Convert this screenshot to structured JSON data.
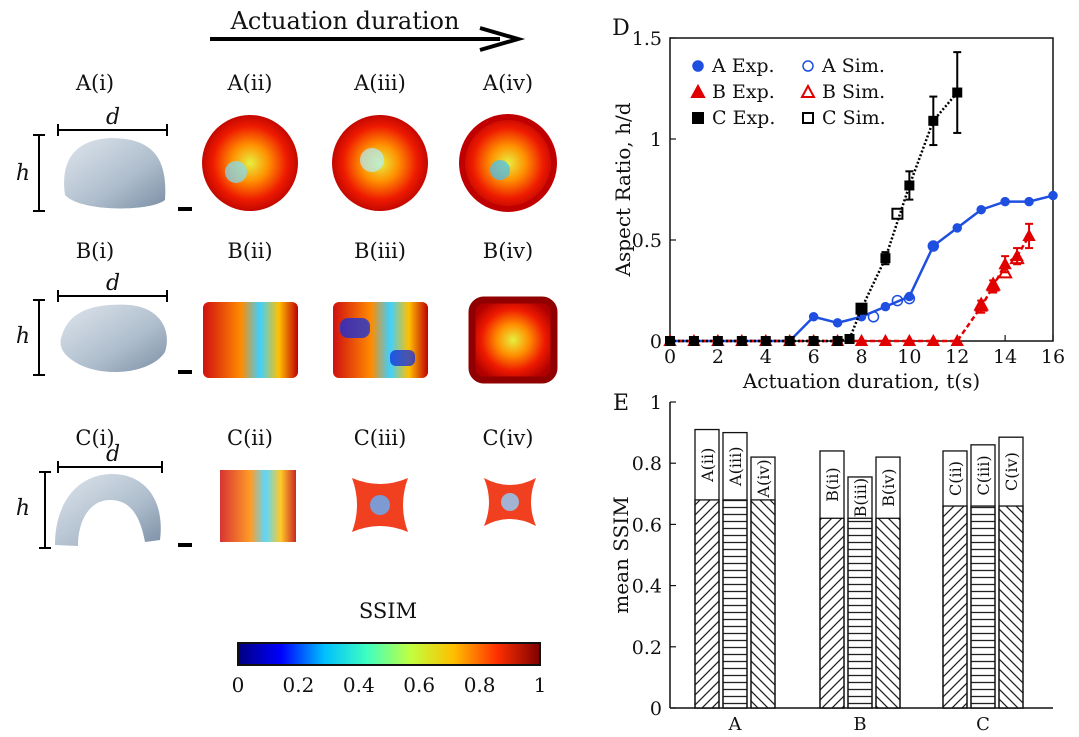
{
  "header": {
    "title": "Actuation duration"
  },
  "grid": {
    "row_a": {
      "labels": [
        "A(i)",
        "A(ii)",
        "A(iii)",
        "A(iv)"
      ],
      "d": "d",
      "h": "h"
    },
    "row_b": {
      "labels": [
        "B(i)",
        "B(ii)",
        "B(iii)",
        "B(iv)"
      ],
      "d": "d",
      "h": "h"
    },
    "row_c": {
      "labels": [
        "C(i)",
        "C(ii)",
        "C(iii)",
        "C(iv)"
      ],
      "d": "d",
      "h": "h"
    }
  },
  "colorbar": {
    "title": "SSIM",
    "ticks": [
      "0",
      "0.2",
      "0.4",
      "0.6",
      "0.8",
      "1"
    ],
    "stops": [
      "#00007f",
      "#0000ff",
      "#00bfff",
      "#40ffc0",
      "#c0ff40",
      "#ffbf00",
      "#ff3000",
      "#7f0000"
    ]
  },
  "panel_d": {
    "label": "D"
  },
  "panel_e": {
    "label": "E"
  },
  "chart_data": [
    {
      "type": "line",
      "title": "",
      "xlabel": "Actuation duration, t(s)",
      "ylabel": "Aspect Ratio, h/d",
      "xlim": [
        0,
        16
      ],
      "ylim": [
        0,
        1.5
      ],
      "xticks": [
        "0",
        "2",
        "4",
        "6",
        "8",
        "10",
        "12",
        "14",
        "16"
      ],
      "yticks": [
        "0",
        "0.5",
        "1",
        "1.5"
      ],
      "legend": [
        {
          "name": "A Exp.",
          "color": "#1f4fe0",
          "marker": "circle-filled"
        },
        {
          "name": "A Sim.",
          "color": "#1f4fe0",
          "marker": "circle-open"
        },
        {
          "name": "B Exp.",
          "color": "#e00000",
          "marker": "triangle-filled"
        },
        {
          "name": "B Sim.",
          "color": "#e00000",
          "marker": "triangle-open"
        },
        {
          "name": "C Exp.",
          "color": "#000000",
          "marker": "square-filled"
        },
        {
          "name": "C Sim.",
          "color": "#000000",
          "marker": "square-open"
        }
      ],
      "series": [
        {
          "name": "A Exp.",
          "color": "#1f4fe0",
          "x": [
            0,
            1,
            2,
            3,
            4,
            5,
            6,
            7,
            8,
            9,
            10,
            11,
            12,
            13,
            14,
            15,
            16
          ],
          "y": [
            0,
            0,
            0,
            0,
            0,
            0,
            0.12,
            0.09,
            0.12,
            0.17,
            0.22,
            0.47,
            0.56,
            0.65,
            0.69,
            0.69,
            0.72
          ]
        },
        {
          "name": "A Sim.",
          "color": "#1f4fe0",
          "x": [
            8.5,
            9.5,
            10,
            11
          ],
          "y": [
            0.12,
            0.2,
            0.21,
            0.47
          ]
        },
        {
          "name": "B Exp.",
          "color": "#e00000",
          "x": [
            0,
            1,
            2,
            3,
            4,
            5,
            6,
            7,
            8,
            9,
            10,
            11,
            12,
            13,
            13.5,
            14,
            14.5,
            15
          ],
          "y": [
            0,
            0,
            0,
            0,
            0,
            0,
            0,
            0,
            0,
            0,
            0,
            0,
            0,
            0.17,
            0.27,
            0.38,
            0.42,
            0.52
          ],
          "err": [
            0,
            0,
            0,
            0,
            0,
            0,
            0,
            0,
            0,
            0,
            0,
            0,
            0,
            0.03,
            0.03,
            0.04,
            0.04,
            0.06
          ]
        },
        {
          "name": "B Sim.",
          "color": "#e00000",
          "x": [
            13,
            13.5,
            14,
            14.5
          ],
          "y": [
            0.18,
            0.28,
            0.34,
            0.41
          ]
        },
        {
          "name": "C Exp.",
          "color": "#000000",
          "x": [
            0,
            1,
            2,
            3,
            4,
            5,
            6,
            7,
            7.5,
            8,
            9,
            10,
            11,
            12
          ],
          "y": [
            0,
            0,
            0,
            0,
            0,
            0,
            0,
            0,
            0.01,
            0.16,
            0.41,
            0.77,
            1.09,
            1.23
          ],
          "err": [
            0,
            0,
            0,
            0,
            0,
            0,
            0,
            0,
            0,
            0.02,
            0.03,
            0.07,
            0.12,
            0.2
          ]
        },
        {
          "name": "C Sim.",
          "color": "#000000",
          "x": [
            8,
            9.5
          ],
          "y": [
            0.16,
            0.63
          ]
        }
      ]
    },
    {
      "type": "bar",
      "title": "",
      "xlabel": "",
      "ylabel": "mean SSIM",
      "ylim": [
        0,
        1
      ],
      "yticks": [
        "0",
        "0.2",
        "0.4",
        "0.6",
        "0.8",
        "1"
      ],
      "categories": [
        "A",
        "B",
        "C"
      ],
      "series": [
        {
          "name": "(ii)",
          "values": [
            0.91,
            0.84,
            0.84
          ],
          "bar_labels": [
            "A(ii)",
            "B(ii)",
            "C(ii)"
          ]
        },
        {
          "name": "(iii)",
          "values": [
            0.9,
            0.755,
            0.86
          ],
          "bar_labels": [
            "A(iii)",
            "B(iii)",
            "C(iii)"
          ]
        },
        {
          "name": "(iv)",
          "values": [
            0.82,
            0.82,
            0.885
          ],
          "bar_labels": [
            "A(iv)",
            "B(iv)",
            "C(iv)"
          ]
        }
      ],
      "fill_top": [
        0.68,
        0.62,
        0.66
      ]
    }
  ]
}
